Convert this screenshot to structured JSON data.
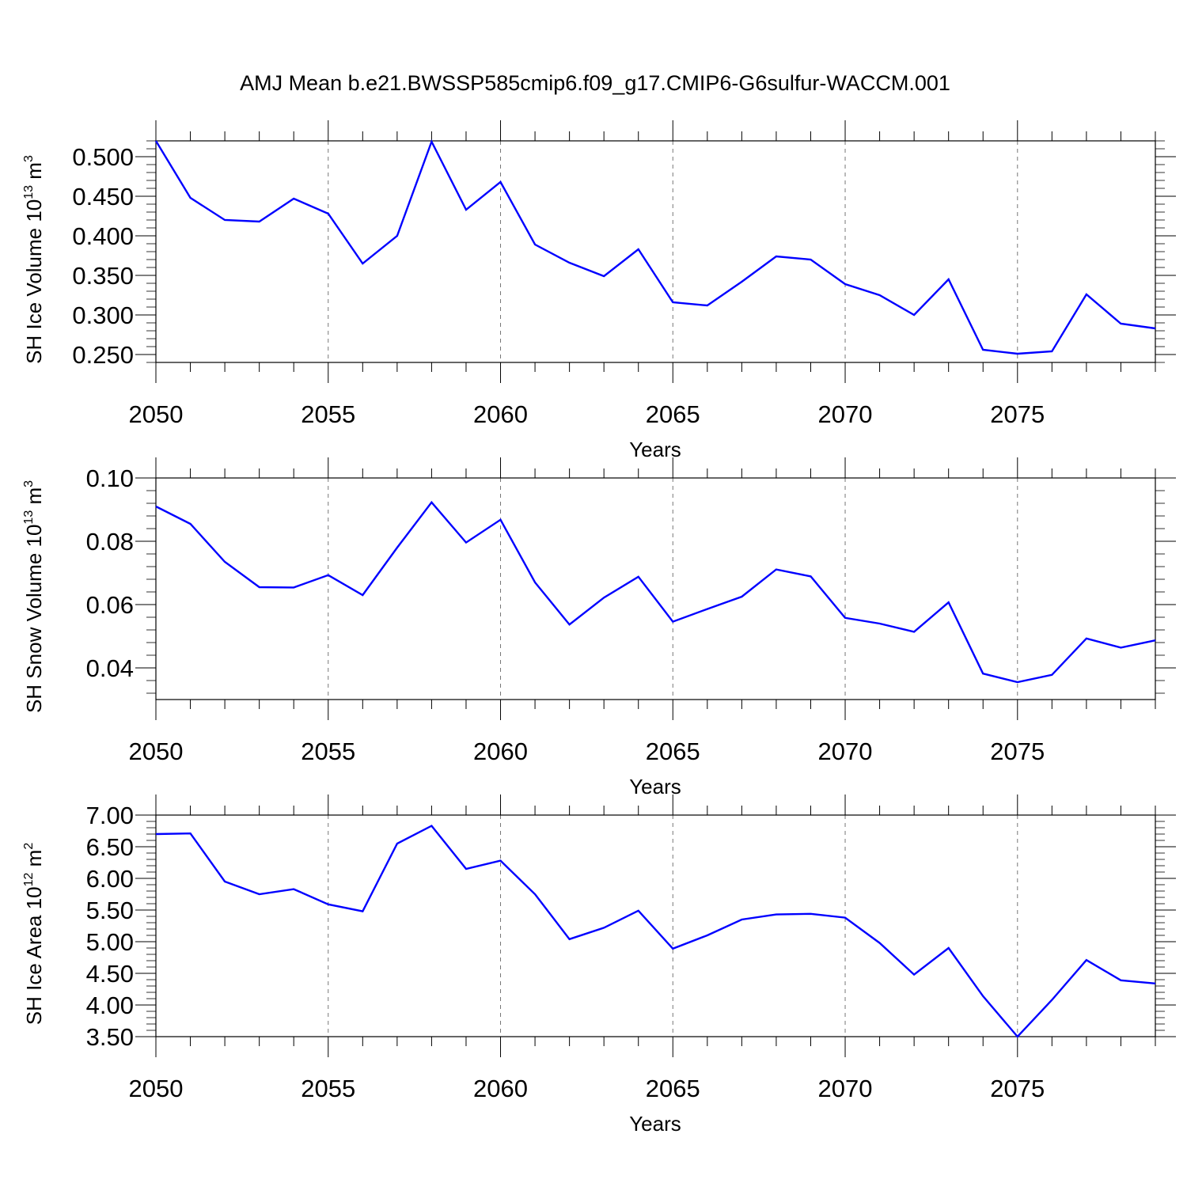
{
  "figure": {
    "title": "AMJ Mean b.e21.BWSSP585cmip6.f09_g17.CMIP6-G6sulfur-WACCM.001"
  },
  "chart_data": [
    {
      "type": "line",
      "xlabel": "Years",
      "ylabel": {
        "text": "SH Ice Volume 10",
        "exp": "13",
        "unit": " m",
        "unit_exp": "3"
      },
      "xlim": [
        2050,
        2079
      ],
      "ylim": [
        0.24,
        0.52
      ],
      "xticks": [
        "2050",
        "2055",
        "2060",
        "2065",
        "2070",
        "2075"
      ],
      "yticks": [
        "0.250",
        "0.300",
        "0.350",
        "0.400",
        "0.450",
        "0.500"
      ],
      "ytick_values": [
        0.25,
        0.3,
        0.35,
        0.4,
        0.45,
        0.5
      ],
      "grid": "vertical dashed at major x ticks",
      "line_color": "#0000ff",
      "series": [
        {
          "x": [
            2050,
            2051,
            2052,
            2053,
            2054,
            2055,
            2056,
            2057,
            2058,
            2059,
            2060,
            2061,
            2062,
            2063,
            2064,
            2065,
            2066,
            2067,
            2068,
            2069,
            2070,
            2071,
            2072,
            2073,
            2074,
            2075,
            2076,
            2077,
            2078,
            2079
          ],
          "values": [
            0.52,
            0.448,
            0.42,
            0.418,
            0.447,
            0.428,
            0.365,
            0.4,
            0.519,
            0.433,
            0.468,
            0.389,
            0.366,
            0.349,
            0.383,
            0.316,
            0.312,
            0.342,
            0.374,
            0.37,
            0.339,
            0.325,
            0.3,
            0.345,
            0.256,
            0.251,
            0.254,
            0.326,
            0.289,
            0.283
          ]
        }
      ]
    },
    {
      "type": "line",
      "xlabel": "Years",
      "ylabel": {
        "text": "SH Snow Volume 10",
        "exp": "13",
        "unit": " m",
        "unit_exp": "3"
      },
      "xlim": [
        2050,
        2079
      ],
      "ylim": [
        0.03,
        0.1
      ],
      "xticks": [
        "2050",
        "2055",
        "2060",
        "2065",
        "2070",
        "2075"
      ],
      "yticks": [
        "0.04",
        "0.06",
        "0.08",
        "0.10"
      ],
      "ytick_values": [
        0.04,
        0.06,
        0.08,
        0.1
      ],
      "grid": "vertical dashed at major x ticks",
      "line_color": "#0000ff",
      "series": [
        {
          "x": [
            2050,
            2051,
            2052,
            2053,
            2054,
            2055,
            2056,
            2057,
            2058,
            2059,
            2060,
            2061,
            2062,
            2063,
            2064,
            2065,
            2066,
            2067,
            2068,
            2069,
            2070,
            2071,
            2072,
            2073,
            2074,
            2075,
            2076,
            2077,
            2078,
            2079
          ],
          "values": [
            0.091,
            0.0855,
            0.0735,
            0.0655,
            0.0654,
            0.0693,
            0.063,
            0.078,
            0.0923,
            0.0796,
            0.0868,
            0.067,
            0.0537,
            0.0622,
            0.0688,
            0.0546,
            0.0586,
            0.0625,
            0.0711,
            0.0689,
            0.0558,
            0.054,
            0.0514,
            0.0607,
            0.0382,
            0.0355,
            0.0378,
            0.0493,
            0.0464,
            0.0487
          ]
        }
      ]
    },
    {
      "type": "line",
      "xlabel": "Years",
      "ylabel": {
        "text": "SH Ice Area 10",
        "exp": "12",
        "unit": " m",
        "unit_exp": "2"
      },
      "xlim": [
        2050,
        2079
      ],
      "ylim": [
        3.5,
        7.0
      ],
      "xticks": [
        "2050",
        "2055",
        "2060",
        "2065",
        "2070",
        "2075"
      ],
      "yticks": [
        "3.50",
        "4.00",
        "4.50",
        "5.00",
        "5.50",
        "6.00",
        "6.50",
        "7.00"
      ],
      "ytick_values": [
        3.5,
        4.0,
        4.5,
        5.0,
        5.5,
        6.0,
        6.5,
        7.0
      ],
      "grid": "vertical dashed at major x ticks",
      "line_color": "#0000ff",
      "series": [
        {
          "x": [
            2050,
            2051,
            2052,
            2053,
            2054,
            2055,
            2056,
            2057,
            2058,
            2059,
            2060,
            2061,
            2062,
            2063,
            2064,
            2065,
            2066,
            2067,
            2068,
            2069,
            2070,
            2071,
            2072,
            2073,
            2074,
            2075,
            2076,
            2077,
            2078,
            2079
          ],
          "values": [
            6.7,
            6.71,
            5.95,
            5.75,
            5.83,
            5.59,
            5.48,
            6.55,
            6.83,
            6.15,
            6.28,
            5.75,
            5.04,
            5.22,
            5.49,
            4.89,
            5.1,
            5.35,
            5.43,
            5.44,
            5.38,
            4.98,
            4.48,
            4.9,
            4.14,
            3.5,
            4.08,
            4.71,
            4.39,
            4.34
          ]
        }
      ]
    }
  ]
}
